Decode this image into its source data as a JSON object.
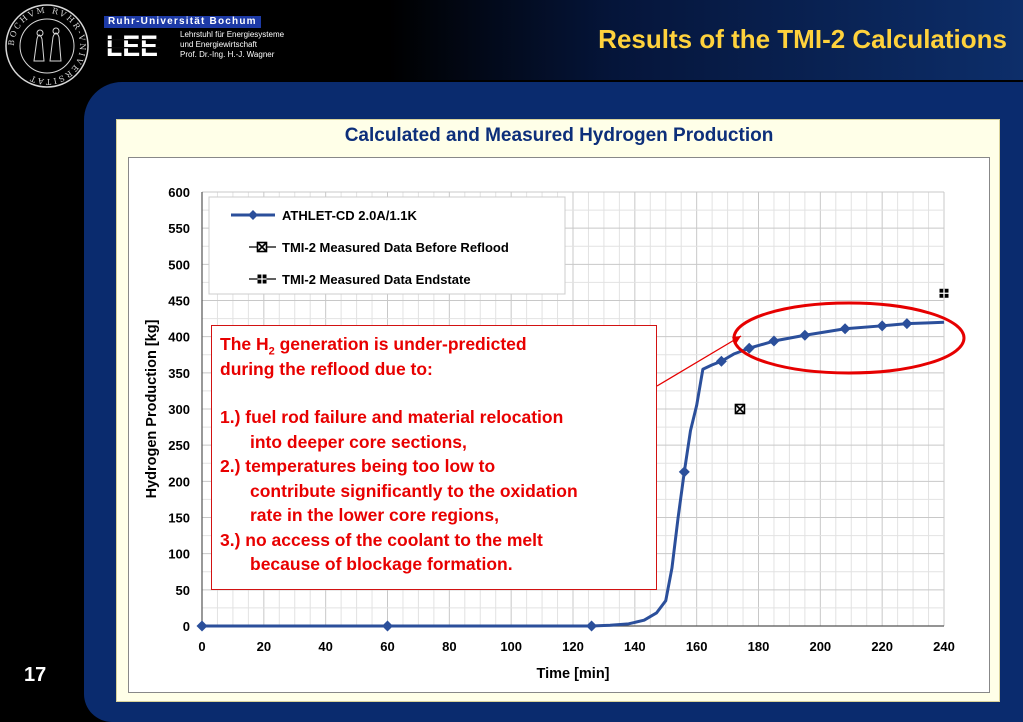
{
  "header": {
    "university_banner": "Ruhr-Universität Bochum",
    "logo_text": "LEE",
    "chair_lines": [
      "Lehrstuhl für Energiesysteme",
      "und Energiewirtschaft",
      "Prof. Dr.-Ing. H.-J. Wagner"
    ],
    "slide_title": "Results of the TMI-2 Calculations",
    "seal_text": "BOCHVM RVHR-VNIVERSITAT"
  },
  "slide_number": "17",
  "content": {
    "title": "Calculated and Measured Hydrogen Production"
  },
  "annotation": {
    "intro_before_sub": "The H",
    "intro_sub": "2",
    "intro_after_sub": " generation is under-predicted",
    "intro_line2": "during the reflood due to:",
    "item1_line1": "1.) fuel rod failure and material relocation",
    "item1_line2": "into deeper core sections,",
    "item2_line1": "2.) temperatures being too low to",
    "item2_line2": "contribute significantly to the oxidation",
    "item2_line3": "rate in the lower core regions,",
    "item3_line1": "3.) no access of the coolant to the melt",
    "item3_line2": "because of blockage formation.",
    "color": "#e80000"
  },
  "chart_data": {
    "type": "line",
    "xlabel": "Time [min]",
    "ylabel": "Hydrogen Production [kg]",
    "xlim": [
      0,
      240
    ],
    "ylim": [
      0,
      600
    ],
    "xticks": [
      0,
      20,
      40,
      60,
      80,
      100,
      120,
      140,
      160,
      180,
      200,
      220,
      240
    ],
    "yticks": [
      0,
      50,
      100,
      150,
      200,
      250,
      300,
      350,
      400,
      450,
      500,
      550,
      600
    ],
    "grid": true,
    "legend_position": "top-left",
    "series": [
      {
        "name": "ATHLET-CD 2.0A/1.1K",
        "color": "#2b4f9b",
        "marker": "diamond",
        "x": [
          0,
          60,
          126,
          132,
          138,
          143,
          147,
          150,
          152,
          154,
          156,
          158,
          160,
          162,
          165,
          168,
          172,
          177,
          185,
          195,
          208,
          220,
          228,
          235,
          240
        ],
        "y": [
          0,
          0,
          0,
          1,
          3,
          8,
          18,
          35,
          80,
          150,
          213,
          270,
          305,
          355,
          361,
          366,
          376,
          384,
          394,
          402,
          411,
          415,
          418,
          419,
          420
        ],
        "marker_x": [
          0,
          60,
          126,
          156,
          168,
          177,
          185,
          195,
          208,
          220,
          228
        ],
        "marker_y": [
          0,
          0,
          0,
          213,
          366,
          384,
          394,
          402,
          411,
          415,
          418
        ]
      },
      {
        "name": "TMI-2 Measured Data Before Reflood",
        "marker": "crossed-box",
        "x": [
          174
        ],
        "y": [
          300
        ]
      },
      {
        "name": "TMI-2 Measured Data Endstate",
        "marker": "plus-box",
        "x": [
          240
        ],
        "y": [
          460
        ]
      }
    ]
  }
}
